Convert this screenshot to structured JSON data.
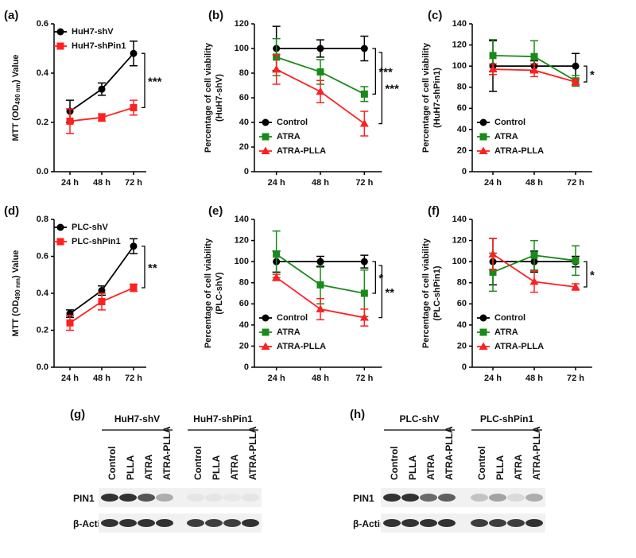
{
  "chart_data": [
    {
      "panel": "(a)",
      "type": "line",
      "categories": [
        "24 h",
        "48 h",
        "72 h"
      ],
      "ylim": [
        0,
        0.6
      ],
      "yticks": [
        {
          "value": 0,
          "label": "0.0"
        },
        0.2,
        0.4,
        0.6
      ],
      "ylabel": {
        "text": "MTT (OD",
        "sub": "490 nm",
        "tail": ") Value"
      },
      "legend": "upper left",
      "series": [
        {
          "name": "HuH7-shV",
          "color": "#000000",
          "marker": "circle",
          "values": [
            0.245,
            0.335,
            0.48
          ],
          "errors": [
            0.045,
            0.025,
            0.05
          ]
        },
        {
          "name": "HuH7-shPin1",
          "color": "#ff2020",
          "marker": "square",
          "values": [
            0.205,
            0.22,
            0.26
          ],
          "errors": [
            0.05,
            0.015,
            0.03
          ]
        }
      ],
      "annotations": [
        "***"
      ]
    },
    {
      "panel": "(b)",
      "type": "line",
      "categories": [
        "24 h",
        "48 h",
        "72 h"
      ],
      "ylim": [
        0,
        120
      ],
      "yticks": [
        0,
        20,
        40,
        60,
        80,
        100,
        120
      ],
      "ylabel": [
        "Percentage of cell viability",
        "(HuH7-shV)"
      ],
      "legend": "lower left",
      "series": [
        {
          "name": "Control",
          "color": "#000000",
          "marker": "circle",
          "values": [
            100,
            100,
            100
          ],
          "errors": [
            18,
            7,
            10
          ]
        },
        {
          "name": "ATRA",
          "color": "#1a8a1a",
          "marker": "square",
          "values": [
            93,
            81,
            63
          ],
          "errors": [
            15,
            10,
            6
          ]
        },
        {
          "name": "ATRA-PLLA",
          "color": "#ff2020",
          "marker": "triangle",
          "values": [
            83,
            65,
            39
          ],
          "errors": [
            12,
            9,
            10
          ]
        }
      ],
      "annotations": [
        "***",
        "***"
      ]
    },
    {
      "panel": "(c)",
      "type": "line",
      "categories": [
        "24 h",
        "48 h",
        "72 h"
      ],
      "ylim": [
        0,
        140
      ],
      "yticks": [
        0,
        20,
        40,
        60,
        80,
        100,
        120,
        140
      ],
      "ylabel": [
        "Percentage of cell viability",
        "(HuH7-shPin1)"
      ],
      "legend": "lower left",
      "series": [
        {
          "name": "Control",
          "color": "#000000",
          "marker": "circle",
          "values": [
            100,
            100,
            100
          ],
          "errors": [
            24,
            5,
            12
          ]
        },
        {
          "name": "ATRA",
          "color": "#1a8a1a",
          "marker": "square",
          "values": [
            110,
            109,
            86
          ],
          "errors": [
            15,
            15,
            5
          ]
        },
        {
          "name": "ATRA-PLLA",
          "color": "#ff2020",
          "marker": "triangle",
          "values": [
            97,
            96,
            85
          ],
          "errors": [
            5,
            6,
            3
          ]
        }
      ],
      "annotations": [
        "*"
      ]
    },
    {
      "panel": "(d)",
      "type": "line",
      "categories": [
        "24 h",
        "48 h",
        "72 h"
      ],
      "ylim": [
        0,
        0.8
      ],
      "yticks": [
        {
          "value": 0,
          "label": "0.0"
        },
        0.2,
        0.4,
        0.6,
        0.8
      ],
      "ylabel": {
        "text": "MTT (OD",
        "sub": "490 nm",
        "tail": ") Value"
      },
      "legend": "upper left",
      "series": [
        {
          "name": "PLC-shV",
          "color": "#000000",
          "marker": "circle",
          "values": [
            0.29,
            0.415,
            0.655
          ],
          "errors": [
            0.02,
            0.025,
            0.04
          ]
        },
        {
          "name": "PLC-shPin1",
          "color": "#ff2020",
          "marker": "square",
          "values": [
            0.24,
            0.355,
            0.43
          ],
          "errors": [
            0.04,
            0.045,
            0.02
          ]
        }
      ],
      "annotations": [
        "**"
      ]
    },
    {
      "panel": "(e)",
      "type": "line",
      "categories": [
        "24 h",
        "48 h",
        "72 h"
      ],
      "ylim": [
        0,
        140
      ],
      "yticks": [
        0,
        20,
        40,
        60,
        80,
        100,
        120,
        140
      ],
      "ylabel": [
        "Percentage of cell viability",
        "(PLC-shV)"
      ],
      "legend": "lower left",
      "series": [
        {
          "name": "Control",
          "color": "#000000",
          "marker": "circle",
          "values": [
            100,
            100,
            100
          ],
          "errors": [
            10,
            5,
            6
          ]
        },
        {
          "name": "ATRA",
          "color": "#1a8a1a",
          "marker": "square",
          "values": [
            107,
            78,
            70
          ],
          "errors": [
            22,
            18,
            22
          ]
        },
        {
          "name": "ATRA-PLLA",
          "color": "#ff2020",
          "marker": "triangle",
          "values": [
            85,
            55,
            47
          ],
          "errors": [
            3,
            10,
            8
          ]
        }
      ],
      "annotations": [
        "*",
        "**"
      ]
    },
    {
      "panel": "(f)",
      "type": "line",
      "categories": [
        "24 h",
        "48 h",
        "72 h"
      ],
      "ylim": [
        0,
        140
      ],
      "yticks": [
        0,
        20,
        40,
        60,
        80,
        100,
        120,
        140
      ],
      "ylabel": [
        "Percentage of cell viability",
        "(PLC-shPin1)"
      ],
      "legend": "lower left",
      "series": [
        {
          "name": "Control",
          "color": "#000000",
          "marker": "circle",
          "values": [
            100,
            100,
            100
          ],
          "errors": [
            22,
            10,
            5
          ]
        },
        {
          "name": "ATRA",
          "color": "#1a8a1a",
          "marker": "square",
          "values": [
            90,
            106,
            101
          ],
          "errors": [
            18,
            14,
            14
          ]
        },
        {
          "name": "ATRA-PLLA",
          "color": "#ff2020",
          "marker": "triangle",
          "values": [
            107,
            81,
            76
          ],
          "errors": [
            15,
            10,
            3
          ]
        }
      ],
      "annotations": [
        "*"
      ]
    }
  ],
  "blots": [
    {
      "panel": "(g)",
      "groups": [
        {
          "name": "HuH7-shV",
          "lanes": [
            "Control",
            "PLLA",
            "ATRA",
            "ATRA-PLLA"
          ]
        },
        {
          "name": "HuH7-shPin1",
          "lanes": [
            "Control",
            "PLLA",
            "ATRA",
            "ATRA-PLLA"
          ]
        }
      ],
      "rows": [
        "PIN1",
        "β-Actin"
      ]
    },
    {
      "panel": "(h)",
      "groups": [
        {
          "name": "PLC-shV",
          "lanes": [
            "Control",
            "PLLA",
            "ATRA",
            "ATRA-PLLA"
          ]
        },
        {
          "name": "PLC-shPin1",
          "lanes": [
            "Control",
            "PLLA",
            "ATRA",
            "ATRA-PLLA"
          ]
        }
      ],
      "rows": [
        "PIN1",
        "β-Actin"
      ]
    }
  ]
}
